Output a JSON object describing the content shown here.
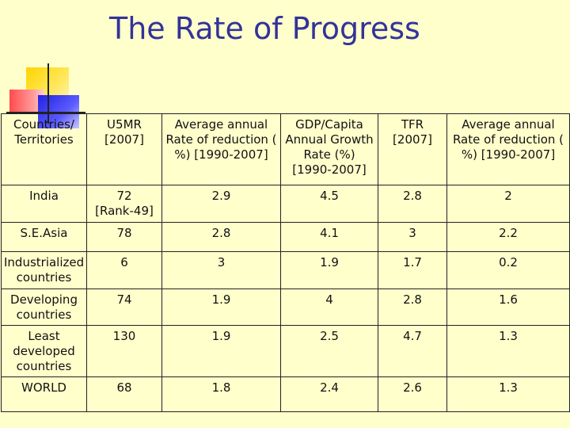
{
  "title": "The Rate of Progress",
  "table": {
    "headers": [
      "Countries/\nTerritories",
      "U5MR\n[2007]",
      "Average annual\nRate of reduction (\n%) [1990-2007]",
      "GDP/Capita\nAnnual Growth\nRate (%)\n[1990-2007]",
      "TFR\n[2007]",
      "Average annual\nRate of reduction  (\n%) [1990-2007]"
    ],
    "rows": [
      [
        "India",
        "72\n[Rank-49]",
        "2.9",
        "4.5",
        "2.8",
        "2"
      ],
      [
        "S.E.Asia",
        "78",
        "2.8",
        "4.1",
        "3",
        "2.2"
      ],
      [
        "Industrialized\ncountries",
        "6",
        "3",
        "1.9",
        "1.7",
        "0.2"
      ],
      [
        "Developing\ncountries",
        "74",
        "1.9",
        "4",
        "2.8",
        "1.6"
      ],
      [
        "Least\ndeveloped\ncountries",
        "130",
        "1.9",
        "2.5",
        "4.7",
        "1.3"
      ],
      [
        "WORLD",
        "68",
        "1.8",
        "2.4",
        "2.6",
        "1.3"
      ]
    ]
  },
  "colors": {
    "background": "#ffffcc",
    "title": "#33339a"
  }
}
